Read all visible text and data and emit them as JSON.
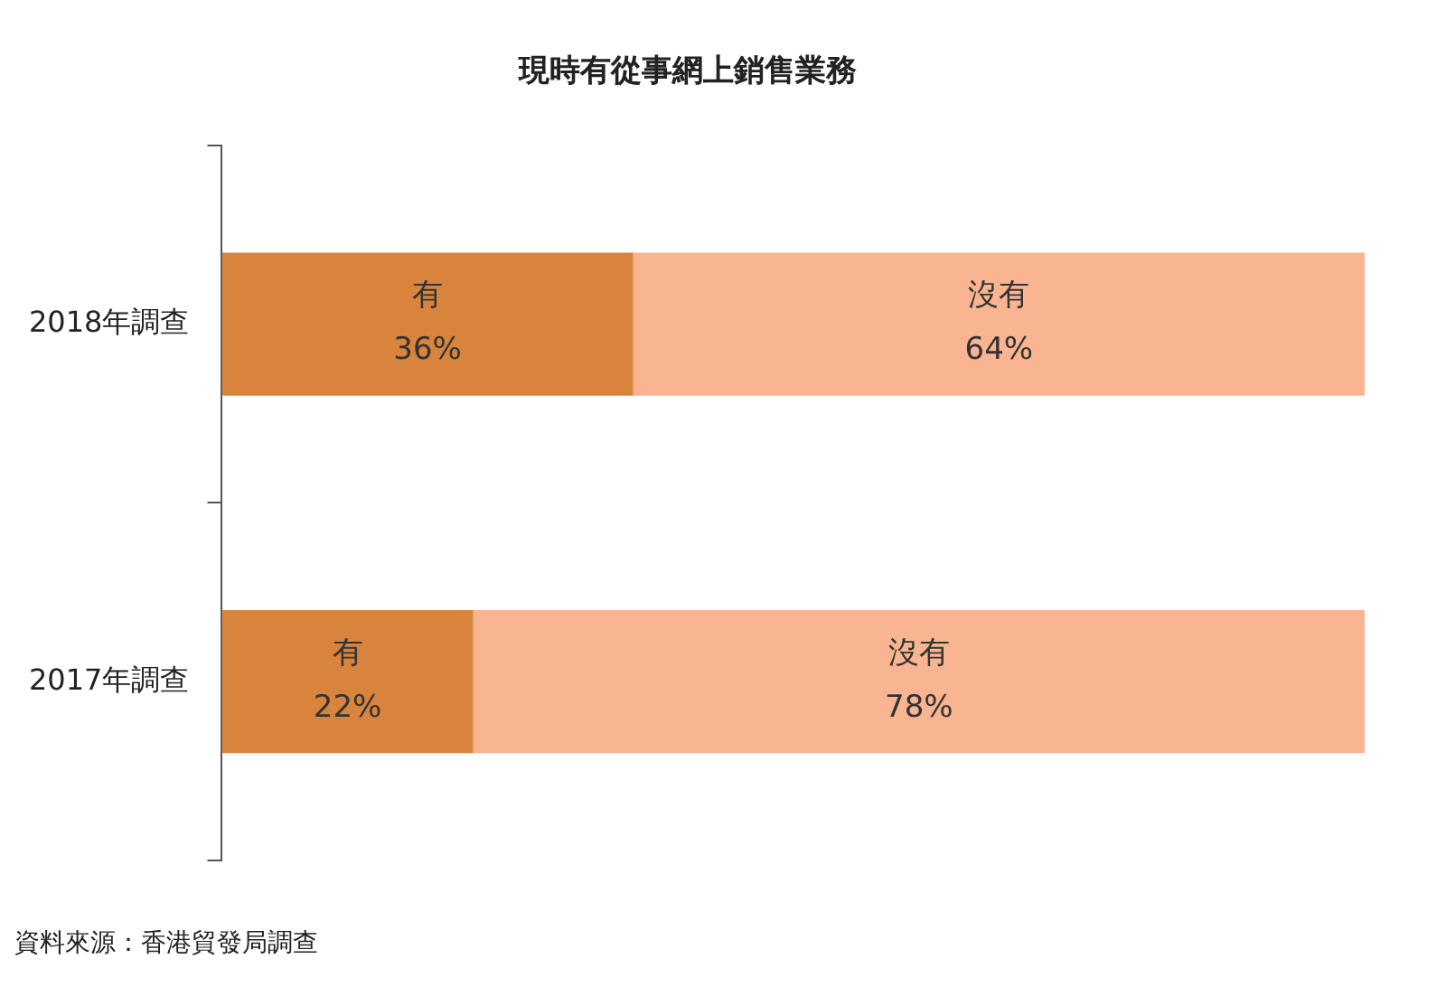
{
  "chart_data": {
    "type": "bar",
    "orientation": "horizontal",
    "stacked": true,
    "title": "現時有從事網上銷售業務",
    "categories": [
      "2018年調查",
      "2017年調查"
    ],
    "series": [
      {
        "name": "有",
        "color": "#d9843c",
        "values": [
          36,
          22
        ],
        "value_labels": [
          "36%",
          "22%"
        ]
      },
      {
        "name": "沒有",
        "color": "#f9b591",
        "values": [
          64,
          78
        ],
        "value_labels": [
          "64%",
          "78%"
        ]
      }
    ],
    "xlim": [
      0,
      100
    ],
    "tick_labels": "y",
    "grid": false,
    "legend": false,
    "annotations": [
      "資料來源：香港貿發局調查"
    ]
  }
}
